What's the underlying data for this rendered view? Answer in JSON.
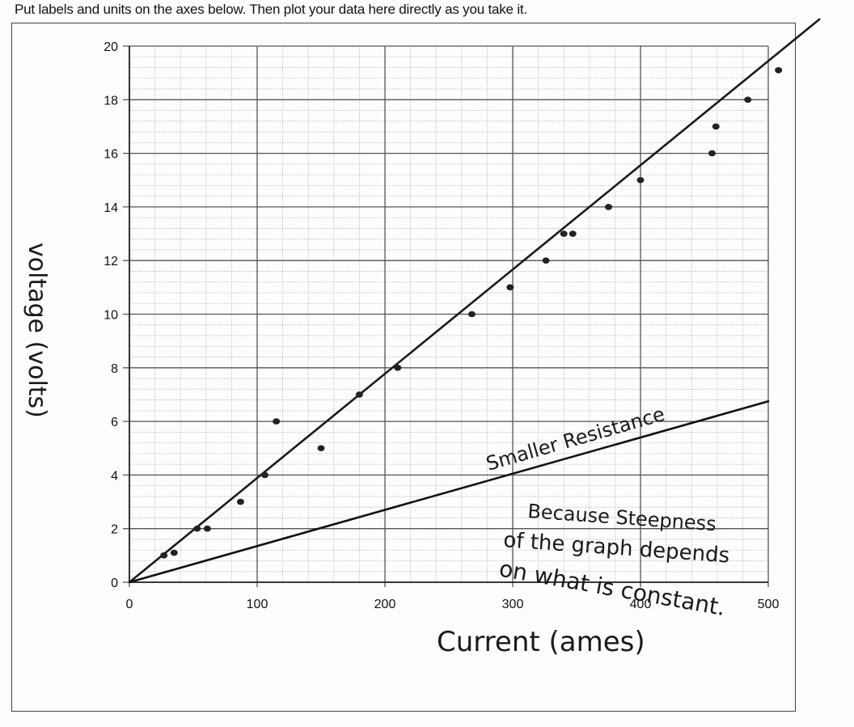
{
  "worksheet": {
    "instruction": "Put labels and units on the axes below.  Then plot your data here directly as you take it."
  },
  "chart_data": {
    "type": "scatter",
    "title": "",
    "xlabel": "Current (amps)",
    "ylabel": "voltage (volts)",
    "xlim": [
      0,
      500
    ],
    "ylim": [
      0,
      20
    ],
    "x_ticks": [
      0,
      100,
      200,
      300,
      400,
      500
    ],
    "y_ticks": [
      0,
      2,
      4,
      6,
      8,
      10,
      12,
      14,
      16,
      18,
      20
    ],
    "grid": true,
    "grid_major": {
      "x": 100,
      "y": 2
    },
    "grid_minor": {
      "x": 20,
      "y": 0.4
    },
    "series": [
      {
        "name": "measured data",
        "type": "scatter",
        "points": [
          [
            27,
            1.0
          ],
          [
            35,
            1.1
          ],
          [
            53,
            2.0
          ],
          [
            61,
            2.0
          ],
          [
            87,
            3.0
          ],
          [
            106,
            4.0
          ],
          [
            115,
            6.0
          ],
          [
            150,
            5.0
          ],
          [
            180,
            7.0
          ],
          [
            210,
            8.0
          ],
          [
            268,
            10.0
          ],
          [
            298,
            11.0
          ],
          [
            326,
            12.0
          ],
          [
            340,
            13.0
          ],
          [
            347,
            13.0
          ],
          [
            375,
            14.0
          ],
          [
            400,
            15.0
          ],
          [
            456,
            16.0
          ],
          [
            459,
            17.0
          ],
          [
            484,
            18.0
          ],
          [
            508,
            19.1
          ]
        ]
      },
      {
        "name": "best-fit line",
        "type": "line",
        "points": [
          [
            0,
            0
          ],
          [
            540,
            21.0
          ]
        ]
      },
      {
        "name": "Smaller Resistance",
        "type": "line",
        "points": [
          [
            0,
            0
          ],
          [
            500,
            6.75
          ]
        ]
      }
    ],
    "annotations": [
      "Smaller Resistance",
      "Because Steepness of the graph depends on what is constant."
    ]
  },
  "labels": {
    "ylabel_hand": "voltage (volts)",
    "xlabel_hand": "Current (ames)",
    "line_label": "Smaller Resistance",
    "note_line1": "Because Steepness",
    "note_line2": "of the graph depends",
    "note_line3": "on what is constant."
  }
}
